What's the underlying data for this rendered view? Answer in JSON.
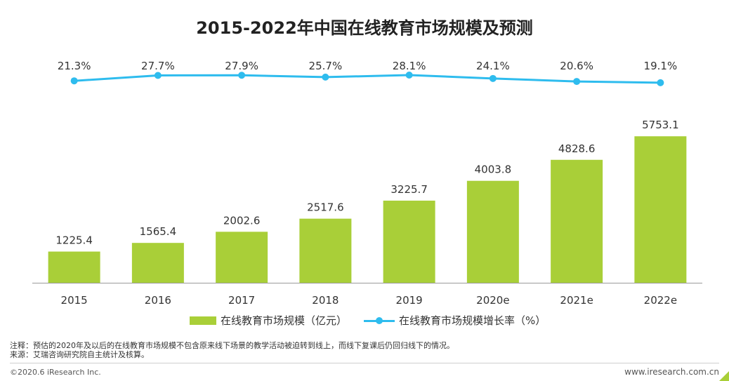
{
  "title": "2015-2022年中国在线教育市场规模及预测",
  "chart_data": {
    "type": "bar+line",
    "categories": [
      "2015",
      "2016",
      "2017",
      "2018",
      "2019",
      "2020e",
      "2021e",
      "2022e"
    ],
    "series": [
      {
        "name": "在线教育市场规模（亿元）",
        "type": "bar",
        "values": [
          1225.4,
          1565.4,
          2002.6,
          2517.6,
          3225.7,
          4003.8,
          4828.6,
          5753.1
        ],
        "labels": [
          "1225.4",
          "1565.4",
          "2002.6",
          "2517.6",
          "3225.7",
          "4003.8",
          "4828.6",
          "5753.1"
        ],
        "color": "#a9cf38"
      },
      {
        "name": "在线教育市场规模增长率（%）",
        "type": "line",
        "values": [
          21.3,
          27.7,
          27.9,
          25.7,
          28.1,
          24.1,
          20.6,
          19.1
        ],
        "labels": [
          "21.3%",
          "27.7%",
          "27.9%",
          "25.7%",
          "28.1%",
          "24.1%",
          "20.6%",
          "19.1%"
        ],
        "color": "#2ebcee"
      }
    ],
    "bar_ylim": [
      0,
      6200
    ],
    "line_ylim": [
      0,
      30
    ],
    "legend_position": "bottom"
  },
  "legend": {
    "bar_label": "在线教育市场规模（亿元）",
    "line_label": "在线教育市场规模增长率（%）"
  },
  "notes": {
    "note": "注释：预估的2020年及以后的在线教育市场规模不包含原来线下场景的教学活动被迫转到线上，而线下复课后仍回归线下的情况。",
    "source": "来源：艾瑞咨询研究院自主统计及核算。"
  },
  "footer": {
    "copyright": "©2020.6 iResearch Inc.",
    "site": "www.iresearch.com.cn"
  }
}
